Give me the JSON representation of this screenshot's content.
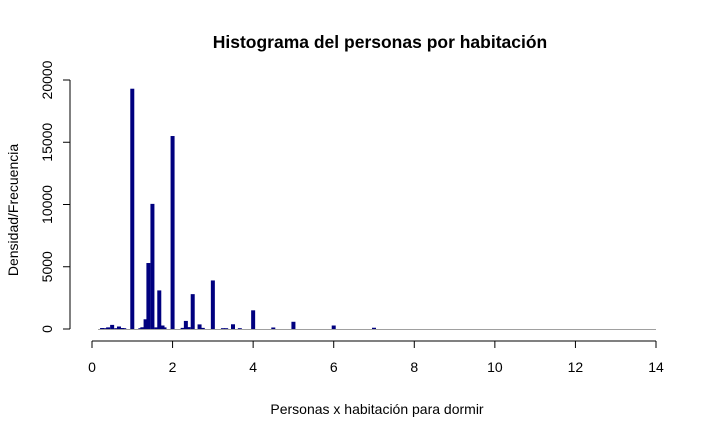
{
  "chart_data": {
    "type": "bar",
    "title": "Histograma del personas por habitación",
    "xlabel": "Personas x habitación para dormir",
    "ylabel": "Densidad/Frecuencia",
    "xlim": [
      0,
      14
    ],
    "ylim": [
      0,
      20000
    ],
    "xticks": [
      "0",
      "2",
      "4",
      "6",
      "8",
      "10",
      "12",
      "14"
    ],
    "yticks": [
      "0",
      "5000",
      "10000",
      "15000",
      "20000"
    ],
    "grid": false,
    "legend": "none",
    "bar_color": "#00007f",
    "baseline_color": "#a0a0a0",
    "x": [
      0.25,
      0.33,
      0.4,
      0.5,
      0.6,
      0.67,
      0.75,
      0.8,
      1.0,
      1.2,
      1.25,
      1.33,
      1.4,
      1.5,
      1.6,
      1.67,
      1.75,
      1.8,
      2.0,
      2.25,
      2.33,
      2.4,
      2.5,
      2.67,
      2.75,
      3.0,
      3.25,
      3.33,
      3.5,
      3.67,
      4.0,
      4.5,
      5.0,
      6.0,
      7.0
    ],
    "values": [
      80,
      60,
      130,
      330,
      40,
      200,
      80,
      30,
      19300,
      60,
      140,
      780,
      5300,
      10050,
      130,
      3100,
      280,
      130,
      15500,
      90,
      650,
      150,
      2800,
      370,
      90,
      3900,
      40,
      60,
      380,
      50,
      1500,
      120,
      580,
      280,
      100
    ]
  }
}
